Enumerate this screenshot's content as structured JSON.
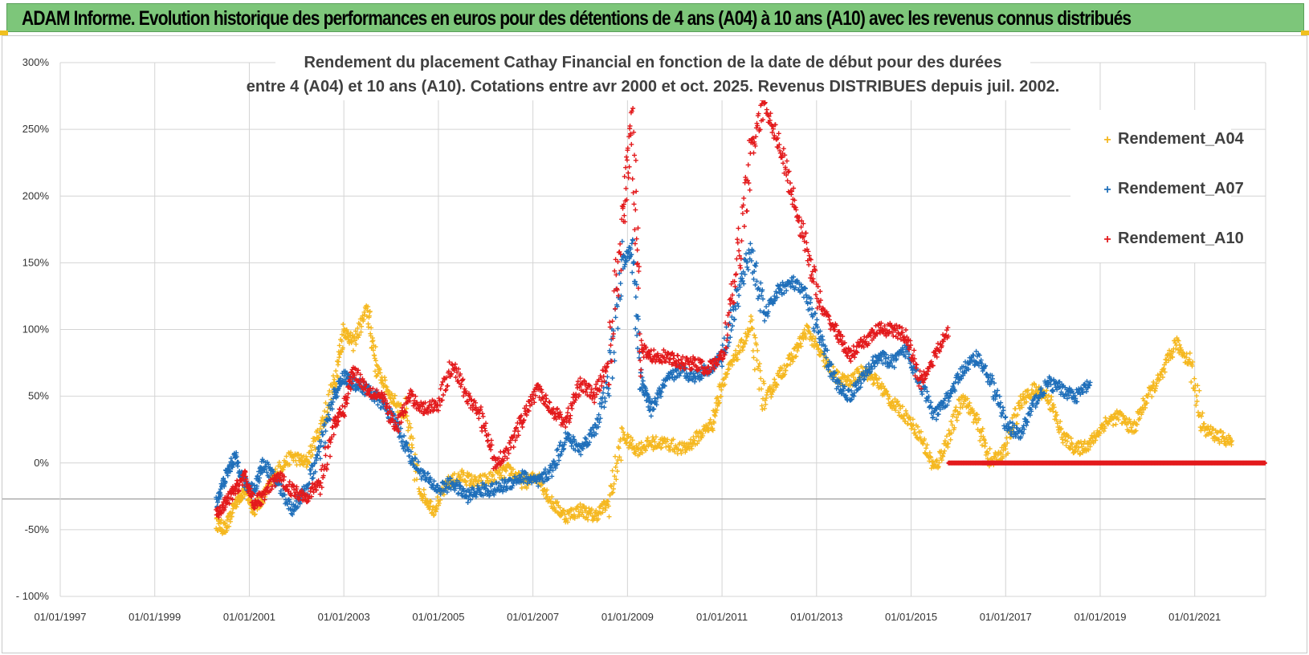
{
  "header": {
    "title": "ADAM Informe. Evolution historique des performances en euros pour des détentions de 4 ans (A04) à 10 ans (A10) avec les revenus connus distribués"
  },
  "chart_data": {
    "type": "scatter",
    "title_lines": [
      "Rendement du placement Cathay Financial  en fonction de la date de début pour des durées",
      "entre 4 (A04) et 10 ans (A10).  Cotations entre avr 2000 et oct. 2025. Revenus DISTRIBUES depuis juil. 2002."
    ],
    "y_ticks": [
      "300%",
      "250%",
      "200%",
      "150%",
      "100%",
      "50%",
      "0%",
      "-50%",
      "- 100%"
    ],
    "ylim": [
      -100,
      300
    ],
    "x_ticks": [
      "01/01/1997",
      "01/01/1999",
      "01/01/2001",
      "01/01/2003",
      "01/01/2005",
      "01/01/2007",
      "01/01/2009",
      "01/01/2011",
      "01/01/2013",
      "01/01/2015",
      "01/01/2017",
      "01/01/2019",
      "01/01/2021"
    ],
    "xlim": [
      1997.0,
      2022.5
    ],
    "legend_position": "top-right",
    "grid": true,
    "marker": "+",
    "series": [
      {
        "name": "Rendement_A04",
        "color": "#f5b820",
        "points": [
          [
            2000.3,
            -45
          ],
          [
            2000.5,
            -50
          ],
          [
            2000.7,
            -30
          ],
          [
            2000.9,
            -20
          ],
          [
            2001.1,
            -35
          ],
          [
            2001.3,
            -25
          ],
          [
            2001.6,
            -5
          ],
          [
            2001.9,
            5
          ],
          [
            2002.2,
            0
          ],
          [
            2002.5,
            25
          ],
          [
            2002.8,
            60
          ],
          [
            2003.0,
            100
          ],
          [
            2003.2,
            90
          ],
          [
            2003.5,
            115
          ],
          [
            2003.7,
            70
          ],
          [
            2004.0,
            50
          ],
          [
            2004.3,
            35
          ],
          [
            2004.6,
            -20
          ],
          [
            2004.9,
            -35
          ],
          [
            2005.2,
            -15
          ],
          [
            2005.5,
            -10
          ],
          [
            2005.8,
            -15
          ],
          [
            2006.2,
            -10
          ],
          [
            2006.5,
            -5
          ],
          [
            2006.8,
            -15
          ],
          [
            2007.1,
            -10
          ],
          [
            2007.4,
            -30
          ],
          [
            2007.7,
            -40
          ],
          [
            2008.0,
            -35
          ],
          [
            2008.3,
            -40
          ],
          [
            2008.6,
            -30
          ],
          [
            2008.9,
            20
          ],
          [
            2009.2,
            10
          ],
          [
            2009.5,
            15
          ],
          [
            2009.8,
            15
          ],
          [
            2010.2,
            10
          ],
          [
            2010.5,
            20
          ],
          [
            2010.8,
            30
          ],
          [
            2011.0,
            60
          ],
          [
            2011.3,
            80
          ],
          [
            2011.6,
            100
          ],
          [
            2011.9,
            45
          ],
          [
            2012.2,
            65
          ],
          [
            2012.5,
            80
          ],
          [
            2012.8,
            100
          ],
          [
            2013.1,
            80
          ],
          [
            2013.4,
            65
          ],
          [
            2013.7,
            60
          ],
          [
            2014.0,
            70
          ],
          [
            2014.3,
            60
          ],
          [
            2014.6,
            45
          ],
          [
            2014.9,
            35
          ],
          [
            2015.2,
            20
          ],
          [
            2015.5,
            -5
          ],
          [
            2015.8,
            20
          ],
          [
            2016.1,
            50
          ],
          [
            2016.4,
            30
          ],
          [
            2016.7,
            0
          ],
          [
            2017.0,
            10
          ],
          [
            2017.3,
            45
          ],
          [
            2017.6,
            55
          ],
          [
            2017.9,
            50
          ],
          [
            2018.2,
            20
          ],
          [
            2018.5,
            10
          ],
          [
            2018.8,
            15
          ],
          [
            2019.1,
            30
          ],
          [
            2019.4,
            35
          ],
          [
            2019.7,
            25
          ],
          [
            2020.0,
            50
          ],
          [
            2020.3,
            65
          ],
          [
            2020.6,
            90
          ],
          [
            2020.9,
            75
          ],
          [
            2021.2,
            25
          ],
          [
            2021.5,
            20
          ],
          [
            2021.8,
            15
          ]
        ]
      },
      {
        "name": "Rendement_A07",
        "color": "#1f6fba",
        "points": [
          [
            2000.3,
            -30
          ],
          [
            2000.5,
            -10
          ],
          [
            2000.7,
            5
          ],
          [
            2000.9,
            -15
          ],
          [
            2001.1,
            -20
          ],
          [
            2001.3,
            0
          ],
          [
            2001.6,
            -15
          ],
          [
            2001.9,
            -35
          ],
          [
            2002.2,
            -20
          ],
          [
            2002.5,
            10
          ],
          [
            2002.8,
            50
          ],
          [
            2003.0,
            65
          ],
          [
            2003.2,
            60
          ],
          [
            2003.5,
            55
          ],
          [
            2003.8,
            45
          ],
          [
            2004.1,
            30
          ],
          [
            2004.4,
            5
          ],
          [
            2004.7,
            -10
          ],
          [
            2005.0,
            -20
          ],
          [
            2005.3,
            -15
          ],
          [
            2005.6,
            -25
          ],
          [
            2005.9,
            -20
          ],
          [
            2006.2,
            -20
          ],
          [
            2006.5,
            -15
          ],
          [
            2006.8,
            -10
          ],
          [
            2007.1,
            -15
          ],
          [
            2007.4,
            -5
          ],
          [
            2007.7,
            20
          ],
          [
            2008.0,
            10
          ],
          [
            2008.3,
            25
          ],
          [
            2008.6,
            60
          ],
          [
            2008.9,
            150
          ],
          [
            2009.1,
            160
          ],
          [
            2009.3,
            60
          ],
          [
            2009.5,
            40
          ],
          [
            2009.8,
            60
          ],
          [
            2010.1,
            70
          ],
          [
            2010.4,
            65
          ],
          [
            2010.7,
            70
          ],
          [
            2011.0,
            80
          ],
          [
            2011.3,
            120
          ],
          [
            2011.6,
            160
          ],
          [
            2011.9,
            110
          ],
          [
            2012.2,
            130
          ],
          [
            2012.5,
            135
          ],
          [
            2012.8,
            125
          ],
          [
            2013.1,
            90
          ],
          [
            2013.4,
            60
          ],
          [
            2013.7,
            50
          ],
          [
            2014.0,
            65
          ],
          [
            2014.3,
            80
          ],
          [
            2014.6,
            75
          ],
          [
            2014.9,
            85
          ],
          [
            2015.2,
            60
          ],
          [
            2015.5,
            35
          ],
          [
            2015.8,
            50
          ],
          [
            2016.1,
            70
          ],
          [
            2016.4,
            80
          ],
          [
            2016.7,
            60
          ],
          [
            2017.0,
            30
          ],
          [
            2017.3,
            20
          ],
          [
            2017.6,
            45
          ],
          [
            2017.9,
            60
          ],
          [
            2018.2,
            55
          ],
          [
            2018.5,
            50
          ],
          [
            2018.8,
            60
          ]
        ]
      },
      {
        "name": "Rendement_A10",
        "color": "#e31a1c",
        "points": [
          [
            2000.3,
            -40
          ],
          [
            2000.5,
            -30
          ],
          [
            2000.7,
            -20
          ],
          [
            2000.9,
            -10
          ],
          [
            2001.1,
            -30
          ],
          [
            2001.3,
            -25
          ],
          [
            2001.6,
            -10
          ],
          [
            2001.9,
            -20
          ],
          [
            2002.2,
            -25
          ],
          [
            2002.5,
            -15
          ],
          [
            2002.8,
            30
          ],
          [
            2003.0,
            40
          ],
          [
            2003.2,
            70
          ],
          [
            2003.5,
            55
          ],
          [
            2003.8,
            50
          ],
          [
            2004.1,
            25
          ],
          [
            2004.4,
            50
          ],
          [
            2004.7,
            40
          ],
          [
            2005.0,
            45
          ],
          [
            2005.3,
            75
          ],
          [
            2005.6,
            50
          ],
          [
            2005.9,
            35
          ],
          [
            2006.2,
            0
          ],
          [
            2006.5,
            10
          ],
          [
            2006.8,
            35
          ],
          [
            2007.1,
            55
          ],
          [
            2007.4,
            40
          ],
          [
            2007.7,
            30
          ],
          [
            2008.0,
            60
          ],
          [
            2008.3,
            50
          ],
          [
            2008.6,
            75
          ],
          [
            2008.9,
            180
          ],
          [
            2009.1,
            260
          ],
          [
            2009.3,
            85
          ],
          [
            2009.5,
            80
          ],
          [
            2009.8,
            80
          ],
          [
            2010.1,
            75
          ],
          [
            2010.4,
            75
          ],
          [
            2010.7,
            70
          ],
          [
            2011.0,
            80
          ],
          [
            2011.3,
            140
          ],
          [
            2011.6,
            230
          ],
          [
            2011.9,
            270
          ],
          [
            2012.2,
            240
          ],
          [
            2012.5,
            200
          ],
          [
            2012.8,
            160
          ],
          [
            2013.1,
            115
          ],
          [
            2013.4,
            100
          ],
          [
            2013.7,
            80
          ],
          [
            2014.0,
            90
          ],
          [
            2014.3,
            100
          ],
          [
            2014.6,
            100
          ],
          [
            2014.9,
            95
          ],
          [
            2015.2,
            60
          ],
          [
            2015.5,
            80
          ],
          [
            2015.8,
            100
          ]
        ]
      },
      {
        "name": "Rendement_A10",
        "color": "#e31a1c",
        "points": [
          [
            2015.8,
            0
          ],
          [
            2016.5,
            0
          ],
          [
            2017.0,
            0
          ],
          [
            2017.5,
            0
          ],
          [
            2018.0,
            0
          ],
          [
            2018.5,
            0
          ],
          [
            2019.0,
            0
          ],
          [
            2019.5,
            0
          ],
          [
            2020.0,
            0
          ],
          [
            2020.5,
            0
          ],
          [
            2021.0,
            0
          ],
          [
            2021.5,
            0
          ],
          [
            2022.0,
            0
          ],
          [
            2022.5,
            0
          ]
        ]
      }
    ]
  }
}
